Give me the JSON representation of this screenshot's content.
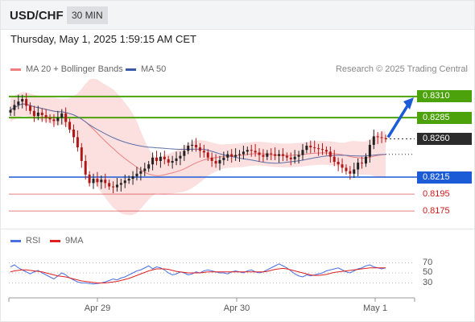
{
  "header": {
    "symbol": "USD/CHF",
    "timeframe": "30 MIN",
    "timestamp": "Thursday, May 1, 2025 1:59:15 AM CET"
  },
  "legend": {
    "ma20_label": "MA 20 + Bollinger Bands",
    "ma50_label": "MA 50",
    "credit": "Research © 2025 Trading Central"
  },
  "rsi_legend": {
    "rsi_label": "RSI",
    "ma_label": "9MA"
  },
  "colors": {
    "green_level": "#4ca20a",
    "blue_level": "#1c5bd6",
    "red_level": "#d01818",
    "candle_up": "#222222",
    "candle_down": "#b01818",
    "bollinger_fill": "#fbd4d4",
    "ma20": "#f08080",
    "ma50": "#5b6fa8",
    "rsi": "#4a6fe0",
    "rsi_ma": "#e02020",
    "arrow": "#1c5bd6"
  },
  "chart_data": {
    "type": "candlestick",
    "x_ticks": [
      "Apr 29",
      "Apr 30",
      "May 1"
    ],
    "y_range": [
      0.816,
      0.8325
    ],
    "levels": [
      {
        "value": 0.831,
        "label": "0.8310",
        "style": "green"
      },
      {
        "value": 0.8285,
        "label": "0.8285",
        "style": "green"
      },
      {
        "value": 0.826,
        "label": "0.8260",
        "style": "dark"
      },
      {
        "value": 0.8215,
        "label": "0.8215",
        "style": "blue"
      },
      {
        "value": 0.8195,
        "label": "0.8195",
        "style": "red"
      },
      {
        "value": 0.8175,
        "label": "0.8175",
        "style": "red"
      }
    ],
    "last_price": 0.826,
    "close_series": [
      0.8294,
      0.83,
      0.8304,
      0.8307,
      0.8299,
      0.8293,
      0.8287,
      0.8291,
      0.8288,
      0.8285,
      0.8283,
      0.8281,
      0.8285,
      0.829,
      0.828,
      0.8271,
      0.8262,
      0.825,
      0.8234,
      0.8218,
      0.8208,
      0.8213,
      0.8209,
      0.8212,
      0.8208,
      0.8204,
      0.8203,
      0.8206,
      0.8208,
      0.8211,
      0.8213,
      0.8216,
      0.8219,
      0.8222,
      0.8225,
      0.823,
      0.8238,
      0.8234,
      0.8239,
      0.8236,
      0.8232,
      0.8234,
      0.8237,
      0.824,
      0.8246,
      0.8252,
      0.8253,
      0.825,
      0.8246,
      0.8244,
      0.8238,
      0.8234,
      0.8231,
      0.8235,
      0.8238,
      0.8242,
      0.8239,
      0.8241,
      0.8242,
      0.8245,
      0.8247,
      0.8246,
      0.8244,
      0.8241,
      0.8239,
      0.8243,
      0.8242,
      0.824,
      0.8242,
      0.824,
      0.8238,
      0.8236,
      0.8239,
      0.8241,
      0.8247,
      0.8252,
      0.825,
      0.8249,
      0.8248,
      0.8247,
      0.8245,
      0.8239,
      0.8233,
      0.823,
      0.8226,
      0.8222,
      0.8219,
      0.8224,
      0.8232,
      0.8231,
      0.8239,
      0.8253,
      0.8263,
      0.8262,
      0.8261,
      0.826
    ],
    "rsi_axis": [
      70,
      50,
      30
    ],
    "rsi_series": [
      62,
      66,
      60,
      56,
      52,
      48,
      52,
      55,
      50,
      46,
      42,
      38,
      44,
      50,
      46,
      40,
      36,
      32,
      30,
      30,
      29,
      28,
      29,
      30,
      32,
      35,
      38,
      36,
      40,
      42,
      46,
      50,
      54,
      56,
      60,
      64,
      58,
      62,
      60,
      56,
      50,
      46,
      48,
      52,
      50,
      46,
      48,
      52,
      50,
      54,
      56,
      54,
      52,
      50,
      50,
      48,
      52,
      54,
      52,
      50,
      54,
      56,
      52,
      50,
      52,
      56,
      60,
      64,
      68,
      64,
      60,
      54,
      48,
      44,
      42,
      46,
      44,
      46,
      48,
      50,
      54,
      56,
      58,
      60,
      56,
      52,
      50,
      54,
      58,
      60,
      64,
      66,
      62,
      60,
      58,
      60
    ],
    "rsi_ma_series": [
      52,
      54,
      55,
      56,
      56,
      55,
      54,
      53,
      52,
      50,
      48,
      46,
      44,
      43,
      42,
      40,
      38,
      36,
      34,
      33,
      32,
      31,
      30,
      30,
      30,
      31,
      32,
      33,
      35,
      37,
      39,
      42,
      45,
      48,
      51,
      54,
      56,
      58,
      58,
      58,
      57,
      55,
      53,
      52,
      51,
      50,
      50,
      50,
      50,
      51,
      52,
      52,
      52,
      52,
      52,
      52,
      52,
      52,
      52,
      52,
      52,
      52,
      52,
      52,
      52,
      53,
      55,
      57,
      58,
      59,
      58,
      56,
      54,
      52,
      50,
      48,
      46,
      45,
      45,
      46,
      47,
      49,
      51,
      52,
      53,
      54,
      55,
      56,
      57,
      58,
      59,
      60,
      60,
      60,
      60,
      60
    ]
  }
}
